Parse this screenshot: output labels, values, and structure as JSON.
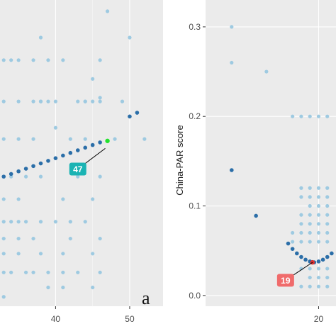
{
  "chart_data": [
    {
      "type": "scatter",
      "panel_label": "a",
      "xlim": [
        32.5,
        54.5
      ],
      "ylim": [
        -0.25,
        7.9
      ],
      "x_ticks": [
        40,
        50
      ],
      "x_tick_labels": [
        "40",
        "50"
      ],
      "grid": true,
      "background": "#ebebeb",
      "annotation": {
        "text": "47",
        "x": 46.7,
        "y": 3.95,
        "label_x": 43,
        "label_y": 3.4,
        "color": "#1ab3b3"
      },
      "highlight_point": {
        "x": 47,
        "y": 4.15,
        "color": "#22e22e"
      },
      "series": [
        {
          "role": "observed",
          "color": "#9ecae1",
          "x": [
            47,
            38,
            50,
            33,
            34,
            35,
            37,
            39,
            41,
            46,
            46,
            45,
            44,
            33,
            35,
            37,
            38,
            38,
            39,
            40,
            43,
            44,
            45,
            46,
            49,
            33,
            35,
            37,
            40,
            42,
            44,
            48,
            52,
            34,
            36,
            38,
            43,
            46,
            33,
            35,
            41,
            45,
            33,
            34,
            35,
            36,
            38,
            40,
            42,
            44,
            33,
            35,
            37,
            42,
            46,
            33,
            35,
            38,
            41,
            45,
            33,
            34,
            36,
            37,
            39,
            41,
            43,
            46,
            39,
            41,
            45,
            33
          ],
          "y": [
            7.6,
            6.9,
            6.9,
            6.3,
            6.3,
            6.3,
            6.3,
            6.3,
            6.3,
            6.3,
            5.3,
            5.8,
            5.2,
            5.2,
            5.2,
            5.2,
            5.2,
            5.2,
            5.2,
            5.2,
            5.2,
            5.2,
            5.2,
            5.2,
            5.2,
            4.2,
            4.2,
            4.2,
            4.5,
            4.2,
            4.2,
            4.2,
            4.2,
            3.2,
            3.2,
            3.2,
            3.2,
            3.2,
            2.6,
            2.6,
            2.6,
            2.6,
            2.0,
            2.0,
            2.0,
            2.0,
            2.0,
            2.0,
            2.0,
            2.0,
            1.55,
            1.55,
            1.55,
            1.55,
            1.55,
            1.15,
            1.15,
            1.15,
            1.15,
            1.15,
            0.65,
            0.65,
            0.65,
            0.65,
            0.65,
            0.65,
            0.65,
            0.65,
            0.25,
            0.25,
            0.25,
            0.0
          ]
        },
        {
          "role": "fitted",
          "color": "#2b6ea8",
          "x": [
            33,
            34,
            35,
            36,
            37,
            38,
            39,
            40,
            41,
            42,
            43,
            44,
            45,
            46,
            50,
            51
          ],
          "y": [
            3.2,
            3.27,
            3.34,
            3.41,
            3.48,
            3.55,
            3.62,
            3.69,
            3.76,
            3.83,
            3.9,
            3.97,
            4.04,
            4.11,
            4.8,
            4.9
          ]
        }
      ]
    },
    {
      "type": "scatter",
      "ylabel": "China-PAR score",
      "xlim": [
        7.0,
        22.0
      ],
      "ylim": [
        -0.012,
        0.33
      ],
      "x_ticks": [
        20
      ],
      "x_tick_labels": [
        "20"
      ],
      "y_ticks": [
        0.0,
        0.1,
        0.2,
        0.3
      ],
      "y_tick_labels": [
        "0.0",
        "0.1",
        "0.2",
        "0.3"
      ],
      "grid": true,
      "background": "#ebebeb",
      "annotation": {
        "text": "19",
        "x": 19.3,
        "y": 0.037,
        "label_x": 16.2,
        "label_y": 0.017,
        "color": "#f06b6b"
      },
      "highlight_point": {
        "x": 19.3,
        "y": 0.037,
        "color": "#d93030"
      },
      "series": [
        {
          "role": "observed",
          "color": "#9ecae1",
          "x": [
            10,
            10,
            14,
            17,
            18,
            19,
            20,
            21,
            18,
            19,
            20,
            21,
            18,
            19,
            20,
            21,
            19,
            20,
            21,
            18,
            19,
            20,
            21,
            18,
            19,
            20,
            21,
            17,
            18,
            19,
            20,
            21,
            17,
            18,
            19,
            20,
            21,
            18,
            19,
            20,
            21,
            19,
            20,
            21,
            18,
            19,
            20,
            21
          ],
          "y": [
            0.3,
            0.26,
            0.25,
            0.2,
            0.2,
            0.2,
            0.2,
            0.2,
            0.12,
            0.12,
            0.12,
            0.12,
            0.11,
            0.11,
            0.11,
            0.11,
            0.1,
            0.1,
            0.1,
            0.09,
            0.09,
            0.09,
            0.09,
            0.08,
            0.08,
            0.08,
            0.08,
            0.07,
            0.07,
            0.07,
            0.07,
            0.07,
            0.06,
            0.06,
            0.06,
            0.06,
            0.06,
            0.03,
            0.03,
            0.03,
            0.03,
            0.02,
            0.02,
            0.02,
            0.01,
            0.01,
            0.01,
            0.01
          ]
        },
        {
          "role": "fitted",
          "color": "#2b6ea8",
          "x": [
            10.0,
            12.8,
            16.5,
            17.0,
            17.5,
            18.0,
            18.5,
            19.0,
            19.5,
            20.0,
            20.5,
            21.0,
            21.5
          ],
          "y": [
            0.14,
            0.089,
            0.058,
            0.052,
            0.047,
            0.043,
            0.04,
            0.038,
            0.037,
            0.038,
            0.04,
            0.043,
            0.047
          ]
        }
      ]
    }
  ]
}
